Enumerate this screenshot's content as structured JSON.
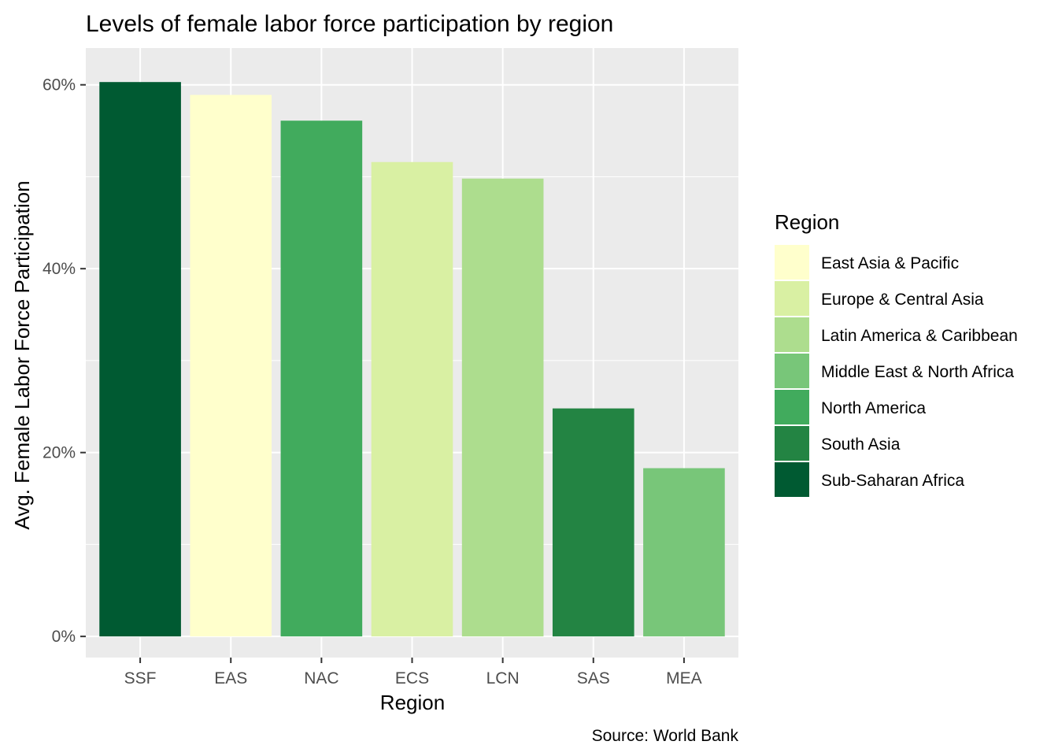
{
  "chart_data": {
    "type": "bar",
    "title": "Levels of female labor force participation by region",
    "xlabel": "Region",
    "ylabel": "Avg. Female Labor Force Participation",
    "caption": "Source: World Bank",
    "ylim": [
      -0.023,
      0.64
    ],
    "yticks": [
      0,
      0.2,
      0.4,
      0.6
    ],
    "ytick_labels": [
      "0%",
      "20%",
      "40%",
      "60%"
    ],
    "grid": true,
    "legend_position": "right",
    "categories": [
      "SSF",
      "EAS",
      "NAC",
      "ECS",
      "LCN",
      "SAS",
      "MEA"
    ],
    "values": [
      0.603,
      0.589,
      0.561,
      0.516,
      0.498,
      0.248,
      0.183
    ],
    "bar_regions": [
      "Sub-Saharan Africa",
      "East Asia & Pacific",
      "North America",
      "Europe & Central Asia",
      "Latin America & Caribbean",
      "South Asia",
      "Middle East & North Africa"
    ],
    "legend": {
      "title": "Region",
      "items": [
        {
          "label": "East Asia & Pacific",
          "color": "#FFFFCC"
        },
        {
          "label": "Europe & Central Asia",
          "color": "#D9F0A3"
        },
        {
          "label": "Latin America & Caribbean",
          "color": "#ADDD8E"
        },
        {
          "label": "Middle East & North Africa",
          "color": "#78C679"
        },
        {
          "label": "North America",
          "color": "#41AB5D"
        },
        {
          "label": "South Asia",
          "color": "#238443"
        },
        {
          "label": "Sub-Saharan Africa",
          "color": "#005A32"
        }
      ]
    },
    "panel_background": "#EBEBEB",
    "grid_color": "#FFFFFF"
  }
}
